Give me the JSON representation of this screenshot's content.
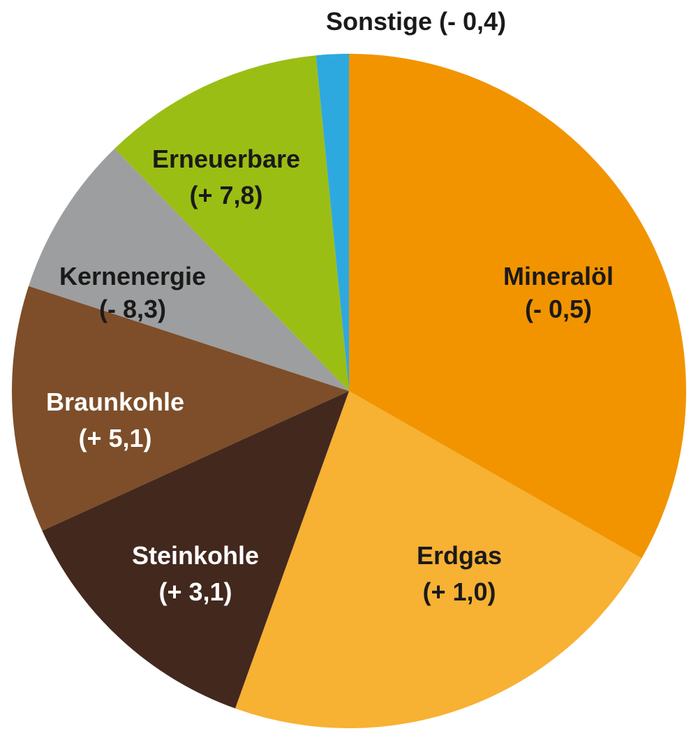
{
  "chart_data": {
    "type": "pie",
    "title": "",
    "slices": [
      {
        "name": "Mineralöl",
        "value": 34.0,
        "change": "(- 0,5)",
        "color": "#F29400",
        "label_color": "#1A1A1A"
      },
      {
        "name": "Erdgas",
        "value": 22.7,
        "change": "(+ 1,0)",
        "color": "#F7B133",
        "label_color": "#1A1A1A"
      },
      {
        "name": "Steinkohle",
        "value": 13.0,
        "change": "(+ 3,1)",
        "color": "#43281E",
        "label_color": "#FFFFFF"
      },
      {
        "name": "Braunkohle",
        "value": 12.1,
        "change": "(+ 5,1)",
        "color": "#7D4E29",
        "label_color": "#FFFFFF"
      },
      {
        "name": "Kernenergie",
        "value": 7.9,
        "change": "(- 8,3)",
        "color": "#9D9E9F",
        "label_color": "#1A1A1A"
      },
      {
        "name": "Erneuerbare",
        "value": 10.9,
        "change": "(+ 7,8)",
        "color": "#9BBE14",
        "label_color": "#1A1A1A"
      },
      {
        "name": "Sonstige",
        "value": 1.6,
        "change": "(- 0,4)",
        "color": "#2EA9DF",
        "label_color": "#1A1A1A"
      }
    ]
  }
}
